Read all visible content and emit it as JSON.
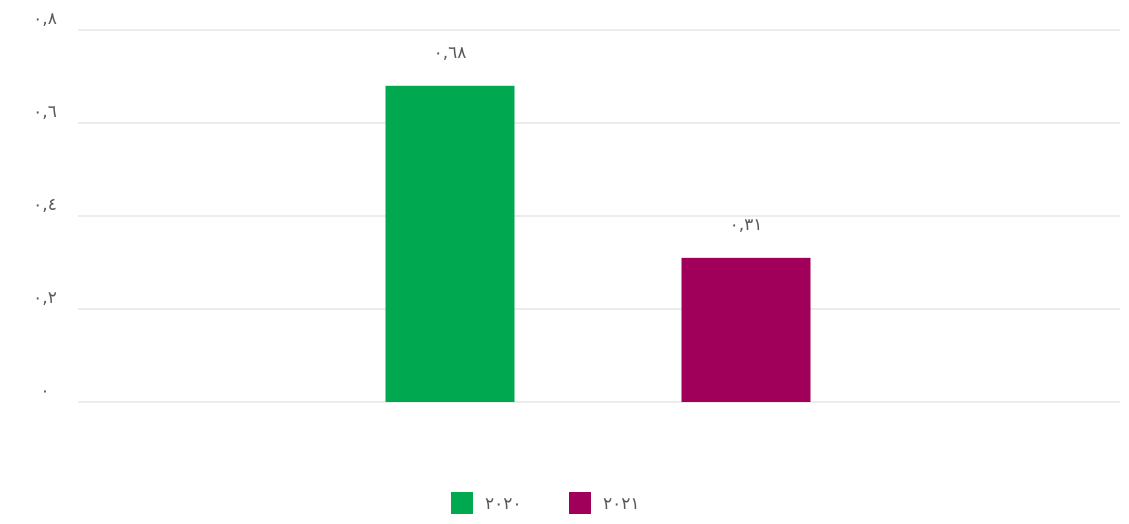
{
  "chart_data": {
    "type": "bar",
    "categories": [
      ""
    ],
    "series": [
      {
        "name": "٢٠٢٠",
        "values": [
          0.68
        ],
        "color": "#00A94F",
        "label": "٠,٦٨"
      },
      {
        "name": "٢٠٢١",
        "values": [
          0.31
        ],
        "color": "#A0005A",
        "label": "٠,٣١"
      }
    ],
    "y_ticks": [
      {
        "value": 0,
        "label": "٠"
      },
      {
        "value": 0.2,
        "label": "٠,٢"
      },
      {
        "value": 0.4,
        "label": "٠,٤"
      },
      {
        "value": 0.6,
        "label": "٠,٦"
      },
      {
        "value": 0.8,
        "label": "٠,٨"
      }
    ],
    "ylim": [
      0,
      0.8
    ],
    "grid": true,
    "legend_position": "bottom",
    "title": "",
    "xlabel": "",
    "ylabel": ""
  }
}
